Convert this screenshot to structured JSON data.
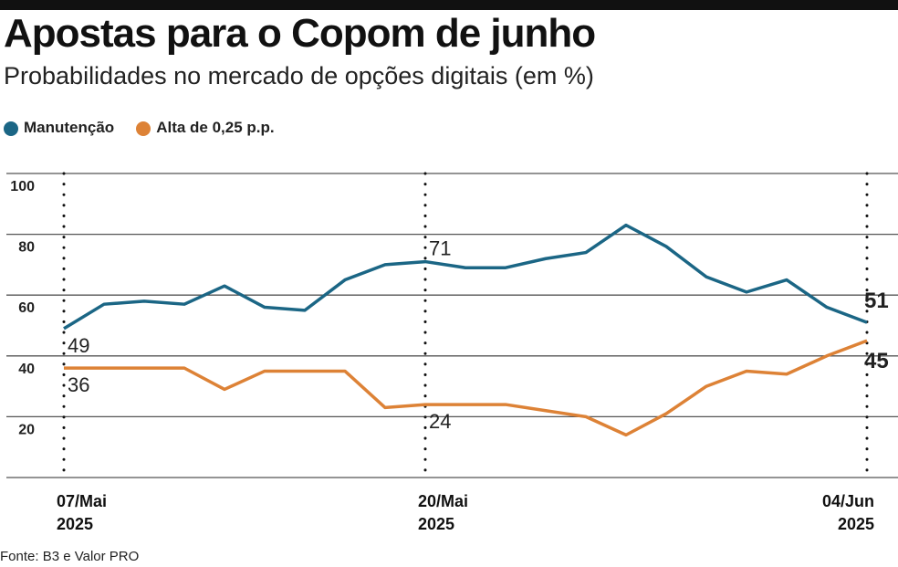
{
  "title": "Apostas para o Copom de junho",
  "subtitle": "Probabilidades no mercado de opções digitais (em %)",
  "source": "Fonte: B3 e Valor PRO",
  "chart_data": {
    "type": "line",
    "title": "Apostas para o Copom de junho",
    "ylim": [
      0,
      100
    ],
    "yticks": [
      "100",
      "80",
      "60",
      "40",
      "20"
    ],
    "ytick_values": [
      100,
      80,
      60,
      40,
      20
    ],
    "xlabels": [
      {
        "index": 0,
        "line1": "07/Mai",
        "line2": "2025"
      },
      {
        "index": 9,
        "line1": "20/Mai",
        "line2": "2025"
      },
      {
        "index": 20,
        "line1": "04/Jun",
        "line2": "2025"
      }
    ],
    "series": [
      {
        "name": "Manutenção",
        "color": "#1b6685",
        "values": [
          49,
          57,
          58,
          57,
          63,
          56,
          55,
          65,
          70,
          71,
          69,
          69,
          72,
          74,
          83,
          76,
          66,
          61,
          65,
          56,
          51
        ]
      },
      {
        "name": "Alta de 0,25 p.p.",
        "color": "#dd8236",
        "values": [
          36,
          36,
          36,
          36,
          29,
          35,
          35,
          35,
          23,
          24,
          24,
          24,
          22,
          20,
          14,
          21,
          30,
          35,
          34,
          40,
          45
        ]
      }
    ],
    "annotations": [
      {
        "series": 0,
        "index": 0,
        "text": "49"
      },
      {
        "series": 0,
        "index": 9,
        "text": "71"
      },
      {
        "series": 0,
        "index": 20,
        "text": "51"
      },
      {
        "series": 1,
        "index": 0,
        "text": "36"
      },
      {
        "series": 1,
        "index": 9,
        "text": "24"
      },
      {
        "series": 1,
        "index": 20,
        "text": "45"
      }
    ]
  }
}
